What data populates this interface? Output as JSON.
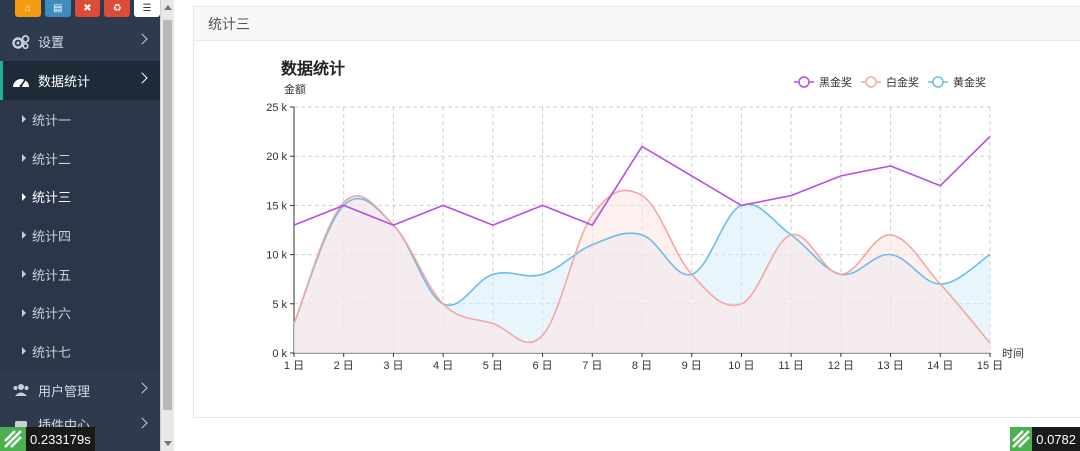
{
  "toolbar": {
    "buttons": [
      {
        "icon": "home-icon",
        "color": "#f39c12",
        "glyph": "⌂"
      },
      {
        "icon": "file-icon",
        "color": "#3c8dbc",
        "glyph": "▤"
      },
      {
        "icon": "trash-icon",
        "color": "#dd4b39",
        "glyph": "✖"
      },
      {
        "icon": "recycle-icon",
        "color": "#dd4b39",
        "glyph": "♻"
      },
      {
        "icon": "list-icon",
        "color": "#ffffff",
        "glyph": "☰"
      }
    ]
  },
  "sidebar": {
    "settings": "设置",
    "stats": "数据统计",
    "sub_items": [
      "统计一",
      "统计二",
      "统计三",
      "统计四",
      "统计五",
      "统计六",
      "统计七"
    ],
    "current_sub": 2,
    "user_mgmt": "用户管理",
    "plugin_center": "插件中心"
  },
  "panel": {
    "title": "统计三"
  },
  "chart_data": {
    "type": "line",
    "title": "数据统计",
    "ylabel": "金额",
    "xlabel": "时间",
    "categories": [
      "1 日",
      "2 日",
      "3 日",
      "4 日",
      "5 日",
      "6 日",
      "7 日",
      "8 日",
      "9 日",
      "10 日",
      "11 日",
      "12 日",
      "13 日",
      "14 日",
      "15 日"
    ],
    "ylim": [
      0,
      25000
    ],
    "yticks": [
      0,
      5000,
      10000,
      15000,
      20000,
      25000
    ],
    "ytick_labels": [
      "0 k",
      "5 k",
      "10 k",
      "15 k",
      "20 k",
      "25 k"
    ],
    "grid": true,
    "legend_position": "top-right",
    "series": [
      {
        "name": "黑金奖",
        "color": "#b44fe8",
        "smooth": false,
        "area": false,
        "values": [
          13000,
          15000,
          13000,
          15000,
          13000,
          15000,
          13000,
          21000,
          18000,
          15000,
          16000,
          18000,
          19000,
          17000,
          22000
        ]
      },
      {
        "name": "白金奖",
        "color": "#f4a7a0",
        "smooth": true,
        "area": true,
        "fill": "#fde4e1",
        "values": [
          3000,
          15300,
          13000,
          5000,
          3000,
          1800,
          14000,
          16000,
          8000,
          5000,
          12000,
          8000,
          12000,
          7000,
          1000
        ]
      },
      {
        "name": "黄金奖",
        "color": "#6cbcec",
        "smooth": true,
        "area": true,
        "fill": "#d7ecfb",
        "values": [
          3000,
          15000,
          13000,
          5000,
          8000,
          8000,
          11000,
          12000,
          8000,
          15000,
          12000,
          8000,
          10000,
          7000,
          10000
        ]
      }
    ]
  },
  "timers": {
    "left": "0.233179s",
    "right": "0.0782"
  }
}
